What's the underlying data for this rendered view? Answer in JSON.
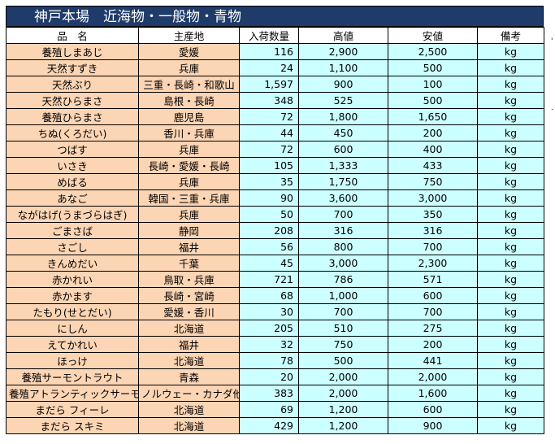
{
  "title": "神戸本場　近海物・一般物・青物",
  "headers": [
    "品　名",
    "主産地",
    "入荷数量",
    "高値",
    "安値",
    "備考"
  ],
  "rows": [
    {
      "name": "養殖しまあじ",
      "origin": "愛媛",
      "qty": "116",
      "high": "2,900",
      "low": "2,500",
      "unit": "kg"
    },
    {
      "name": "天然すずき",
      "origin": "兵庫",
      "qty": "24",
      "high": "1,100",
      "low": "500",
      "unit": "kg"
    },
    {
      "name": "天然ぶり",
      "origin": "三重・長崎・和歌山",
      "qty": "1,597",
      "high": "900",
      "low": "100",
      "unit": "kg"
    },
    {
      "name": "天然ひらまさ",
      "origin": "島根・長崎",
      "qty": "348",
      "high": "525",
      "low": "500",
      "unit": "kg"
    },
    {
      "name": "養殖ひらまさ",
      "origin": "鹿児島",
      "qty": "72",
      "high": "1,800",
      "low": "1,650",
      "unit": "kg"
    },
    {
      "name": "ちぬ(くろだい)",
      "origin": "香川・兵庫",
      "qty": "44",
      "high": "450",
      "low": "200",
      "unit": "kg"
    },
    {
      "name": "つばす",
      "origin": "兵庫",
      "qty": "72",
      "high": "600",
      "low": "400",
      "unit": "kg"
    },
    {
      "name": "いさき",
      "origin": "長崎・愛媛・長崎",
      "qty": "105",
      "high": "1,333",
      "low": "433",
      "unit": "kg"
    },
    {
      "name": "めばる",
      "origin": "兵庫",
      "qty": "35",
      "high": "1,750",
      "low": "750",
      "unit": "kg"
    },
    {
      "name": "あなご",
      "origin": "韓国・三重・兵庫",
      "qty": "90",
      "high": "3,600",
      "low": "3,000",
      "unit": "kg"
    },
    {
      "name": "ながはげ(うまづらはぎ)",
      "origin": "兵庫",
      "qty": "50",
      "high": "700",
      "low": "350",
      "unit": "kg"
    },
    {
      "name": "ごまさば",
      "origin": "静岡",
      "qty": "208",
      "high": "316",
      "low": "316",
      "unit": "kg"
    },
    {
      "name": "さごし",
      "origin": "福井",
      "qty": "56",
      "high": "800",
      "low": "700",
      "unit": "kg"
    },
    {
      "name": "きんめだい",
      "origin": "千葉",
      "qty": "45",
      "high": "3,000",
      "low": "2,300",
      "unit": "kg"
    },
    {
      "name": "赤かれい",
      "origin": "鳥取・兵庫",
      "qty": "721",
      "high": "786",
      "low": "571",
      "unit": "kg"
    },
    {
      "name": "赤かます",
      "origin": "長崎・宮崎",
      "qty": "68",
      "high": "1,000",
      "low": "600",
      "unit": "kg"
    },
    {
      "name": "たもり(せとだい)",
      "origin": "愛媛・香川",
      "qty": "30",
      "high": "700",
      "low": "700",
      "unit": "kg"
    },
    {
      "name": "にしん",
      "origin": "北海道",
      "qty": "205",
      "high": "510",
      "low": "275",
      "unit": "kg"
    },
    {
      "name": "えてかれい",
      "origin": "福井",
      "qty": "32",
      "high": "750",
      "low": "200",
      "unit": "kg"
    },
    {
      "name": "ほっけ",
      "origin": "北海道",
      "qty": "78",
      "high": "500",
      "low": "441",
      "unit": "kg"
    },
    {
      "name": "養殖サーモントラウト",
      "origin": "青森",
      "qty": "20",
      "high": "2,000",
      "low": "2,000",
      "unit": "kg"
    },
    {
      "name": "養殖アトランティックサーモン",
      "origin": "ノルウェー・カナダ他",
      "qty": "383",
      "high": "2,000",
      "low": "1,600",
      "unit": "kg"
    },
    {
      "name": "まだら フィーレ",
      "origin": "北海道",
      "qty": "69",
      "high": "1,200",
      "low": "600",
      "unit": "kg"
    },
    {
      "name": "まだら スキミ",
      "origin": "北海道",
      "qty": "429",
      "high": "1,200",
      "low": "900",
      "unit": "kg"
    }
  ],
  "side_marks": [
    "'",
    "."
  ]
}
